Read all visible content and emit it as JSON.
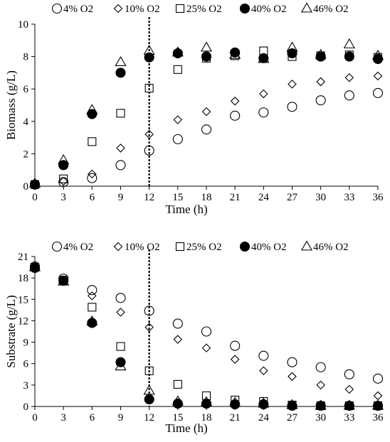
{
  "chart_data": [
    {
      "type": "scatter",
      "xlabel": "Time (h)",
      "ylabel": "Biomass (g/L)",
      "xlim": [
        0,
        36
      ],
      "ylim": [
        0,
        10
      ],
      "xticks": [
        0,
        3,
        6,
        9,
        12,
        15,
        18,
        21,
        24,
        27,
        30,
        33,
        36
      ],
      "yticks": [
        0,
        2,
        4,
        6,
        8,
        10
      ],
      "x": [
        0,
        3,
        6,
        9,
        12,
        15,
        18,
        21,
        24,
        27,
        30,
        33,
        36
      ],
      "vline_x": 12,
      "legend_position": "top",
      "grid": false,
      "series": [
        {
          "name": "4% O2",
          "marker": "circle-open",
          "values": [
            0.1,
            0.25,
            0.5,
            1.3,
            2.2,
            2.9,
            3.5,
            4.35,
            4.55,
            4.9,
            5.3,
            5.6,
            5.75
          ]
        },
        {
          "name": "10% O2",
          "marker": "diamond-open",
          "values": [
            0.1,
            0.3,
            0.75,
            2.35,
            3.2,
            4.1,
            4.6,
            5.25,
            5.7,
            6.3,
            6.45,
            6.7,
            6.8
          ]
        },
        {
          "name": "25% O2",
          "marker": "square-open",
          "values": [
            0.1,
            0.45,
            2.75,
            4.5,
            6.05,
            7.2,
            7.9,
            8.05,
            8.35,
            8.0,
            8.05,
            8.1,
            7.95
          ]
        },
        {
          "name": "40% O2",
          "marker": "circle-filled",
          "values": [
            0.1,
            1.3,
            4.45,
            7.0,
            7.95,
            8.2,
            8.0,
            8.25,
            7.9,
            8.2,
            8.0,
            8.0,
            7.85
          ]
        },
        {
          "name": "46% O2",
          "marker": "triangle-open",
          "values": [
            0.15,
            1.6,
            4.7,
            7.65,
            8.35,
            8.25,
            8.55,
            8.1,
            7.85,
            8.55,
            8.1,
            8.75,
            8.05
          ]
        }
      ]
    },
    {
      "type": "scatter",
      "xlabel": "Time (h)",
      "ylabel": "Substrate (g/L)",
      "xlim": [
        0,
        36
      ],
      "ylim": [
        0,
        21
      ],
      "xticks": [
        0,
        3,
        6,
        9,
        12,
        15,
        18,
        21,
        24,
        27,
        30,
        33,
        36
      ],
      "yticks": [
        0,
        3,
        6,
        9,
        12,
        15,
        18,
        21
      ],
      "x": [
        0,
        3,
        6,
        9,
        12,
        15,
        18,
        21,
        24,
        27,
        30,
        33,
        36
      ],
      "vline_x": 12,
      "legend_position": "top",
      "grid": false,
      "series": [
        {
          "name": "4% O2",
          "marker": "circle-open",
          "values": [
            19.6,
            17.9,
            16.3,
            15.2,
            13.4,
            11.6,
            10.5,
            8.5,
            7.1,
            6.2,
            5.5,
            4.5,
            3.9
          ]
        },
        {
          "name": "10% O2",
          "marker": "diamond-open",
          "values": [
            19.5,
            17.7,
            15.5,
            13.2,
            11.1,
            9.4,
            8.2,
            6.6,
            5.0,
            4.2,
            3.0,
            2.4,
            1.5
          ]
        },
        {
          "name": "25% O2",
          "marker": "square-open",
          "values": [
            19.5,
            17.7,
            13.9,
            8.4,
            5.0,
            3.1,
            1.5,
            0.9,
            0.7,
            0.2,
            0.1,
            0.1,
            0.1
          ]
        },
        {
          "name": "40% O2",
          "marker": "circle-filled",
          "values": [
            19.4,
            17.6,
            11.7,
            6.2,
            1.0,
            0.4,
            0.4,
            0.3,
            0.3,
            0.1,
            0.1,
            0.1,
            0.1
          ]
        },
        {
          "name": "46% O2",
          "marker": "triangle-open",
          "values": [
            19.5,
            17.5,
            11.9,
            5.6,
            2.2,
            0.7,
            0.6,
            0.5,
            0.4,
            0.2,
            0.1,
            0.1,
            0.1
          ]
        }
      ]
    }
  ]
}
